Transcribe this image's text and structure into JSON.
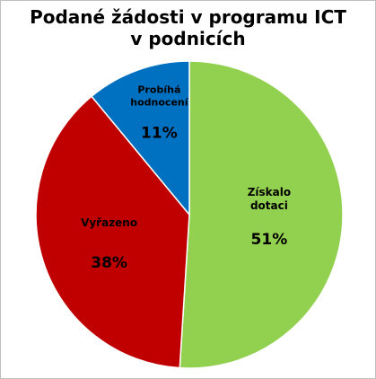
{
  "chart_data": {
    "type": "pie",
    "title_line1": "Podané žádosti v programu ICT",
    "title_line2": "v podnicích",
    "slices": [
      {
        "name_line1": "Získalo",
        "name_line2": "dotaci",
        "value": 51,
        "percent_label": "51%",
        "color": "#92d050"
      },
      {
        "name_line1": "Vyřazeno",
        "name_line2": "",
        "value": 38,
        "percent_label": "38%",
        "color": "#c00000"
      },
      {
        "name_line1": "Probíhá",
        "name_line2": "hodnocení",
        "value": 11,
        "percent_label": "11%",
        "color": "#0070c0"
      }
    ]
  }
}
